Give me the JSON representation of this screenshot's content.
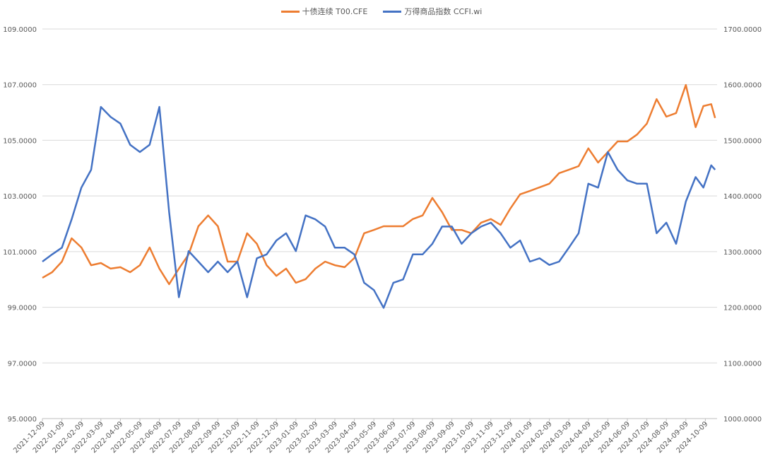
{
  "chart_data": {
    "type": "line",
    "title": "",
    "legend_position": "top",
    "x_unit": "months since 2021-12-09",
    "x_tick_labels": [
      "2021-12-09",
      "2022-01-09",
      "2022-02-09",
      "2022-03-09",
      "2022-04-09",
      "2022-05-09",
      "2022-06-09",
      "2022-07-09",
      "2022-08-09",
      "2022-09-09",
      "2022-10-09",
      "2022-11-09",
      "2022-12-09",
      "2023-01-09",
      "2023-02-09",
      "2023-03-09",
      "2023-04-09",
      "2023-05-09",
      "2023-06-09",
      "2023-07-09",
      "2023-08-09",
      "2023-09-09",
      "2023-10-09",
      "2023-11-09",
      "2023-12-09",
      "2024-01-09",
      "2024-02-09",
      "2024-03-09",
      "2024-04-09",
      "2024-05-09",
      "2024-06-09",
      "2024-07-09",
      "2024-08-09",
      "2024-09-09",
      "2024-10-09"
    ],
    "y_left": {
      "range": [
        95,
        109
      ],
      "ticks": [
        "95.0000",
        "97.0000",
        "99.0000",
        "101.0000",
        "103.0000",
        "105.0000",
        "107.0000",
        "109.0000"
      ]
    },
    "y_right": {
      "range": [
        1000,
        1700
      ],
      "ticks": [
        "1000.0000",
        "1100.0000",
        "1200.0000",
        "1300.0000",
        "1400.0000",
        "1500.0000",
        "1600.0000",
        "1700.0000"
      ]
    },
    "grid": true,
    "x": [
      0,
      0.5,
      1,
      1.5,
      2,
      2.5,
      3,
      3.5,
      4,
      4.5,
      5,
      5.5,
      6,
      6.5,
      7,
      7.5,
      8,
      8.5,
      9,
      9.5,
      10,
      10.5,
      11,
      11.5,
      12,
      12.5,
      13,
      13.5,
      14,
      14.5,
      15,
      15.5,
      16,
      16.5,
      17,
      17.5,
      18,
      18.5,
      19,
      19.5,
      20,
      20.5,
      21,
      21.5,
      22,
      22.5,
      23,
      23.5,
      24,
      24.5,
      25,
      25.5,
      26,
      26.5,
      27,
      27.5,
      28,
      28.5,
      29,
      29.5,
      30,
      30.5,
      31,
      31.5,
      32,
      32.5,
      33,
      33.5,
      33.9,
      34.3,
      34.5
    ],
    "series": [
      {
        "name": "十债连续 T00.CFE",
        "axis": "left",
        "color": "#ED7D31",
        "values": [
          100.06,
          100.26,
          100.64,
          101.48,
          101.15,
          100.51,
          100.59,
          100.39,
          100.44,
          100.26,
          100.51,
          101.15,
          100.39,
          99.83,
          100.39,
          100.9,
          101.91,
          102.3,
          101.91,
          100.64,
          100.64,
          101.66,
          101.28,
          100.51,
          100.13,
          100.39,
          99.88,
          100.01,
          100.39,
          100.64,
          100.51,
          100.44,
          100.77,
          101.66,
          101.78,
          101.91,
          101.91,
          101.91,
          102.17,
          102.3,
          102.93,
          102.42,
          101.78,
          101.78,
          101.66,
          102.04,
          102.17,
          101.96,
          102.55,
          103.06,
          103.18,
          103.31,
          103.44,
          103.82,
          103.94,
          104.07,
          104.71,
          104.2,
          104.58,
          104.96,
          104.96,
          105.21,
          105.6,
          106.48,
          105.85,
          105.98,
          106.99,
          105.47,
          106.23,
          106.3,
          105.8
        ]
      },
      {
        "name": "万得商品指数 CCFI.wi",
        "axis": "right",
        "color": "#4472C4",
        "values": [
          1282,
          1295,
          1307,
          1358,
          1415,
          1447,
          1560,
          1542,
          1530,
          1492,
          1479,
          1492,
          1560,
          1371,
          1218,
          1301,
          1282,
          1263,
          1282,
          1263,
          1282,
          1218,
          1288,
          1295,
          1320,
          1333,
          1301,
          1365,
          1358,
          1345,
          1307,
          1307,
          1295,
          1244,
          1231,
          1199,
          1244,
          1250,
          1295,
          1295,
          1314,
          1345,
          1345,
          1314,
          1333,
          1345,
          1352,
          1333,
          1307,
          1320,
          1282,
          1288,
          1276,
          1282,
          1307,
          1333,
          1422,
          1415,
          1479,
          1447,
          1428,
          1422,
          1422,
          1333,
          1352,
          1314,
          1390,
          1434,
          1415,
          1455,
          1447
        ]
      }
    ]
  }
}
